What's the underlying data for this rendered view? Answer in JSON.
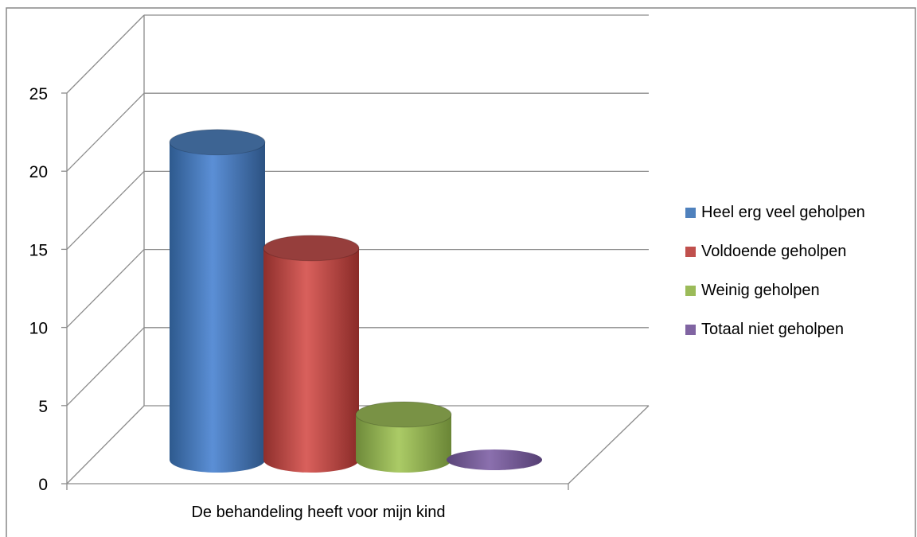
{
  "chart_data": {
    "type": "bar",
    "title": "",
    "xlabel": "",
    "ylabel": "",
    "categories": [
      "De behandeling heeft voor mijn kind"
    ],
    "series": [
      {
        "name": "Heel erg veel geholpen",
        "values": [
          21
        ],
        "color": "#4F81BD"
      },
      {
        "name": "Voldoende geholpen",
        "values": [
          14
        ],
        "color": "#C0504D"
      },
      {
        "name": "Weinig geholpen",
        "values": [
          3
        ],
        "color": "#9BBB59"
      },
      {
        "name": "Totaal niet geholpen",
        "values": [
          0
        ],
        "color": "#8064A2"
      }
    ],
    "yticks": [
      "0",
      "5",
      "10",
      "15",
      "20",
      "25"
    ],
    "ylim": [
      0,
      25
    ],
    "grid": true,
    "legend": "right",
    "style": "3d-cylinder"
  }
}
